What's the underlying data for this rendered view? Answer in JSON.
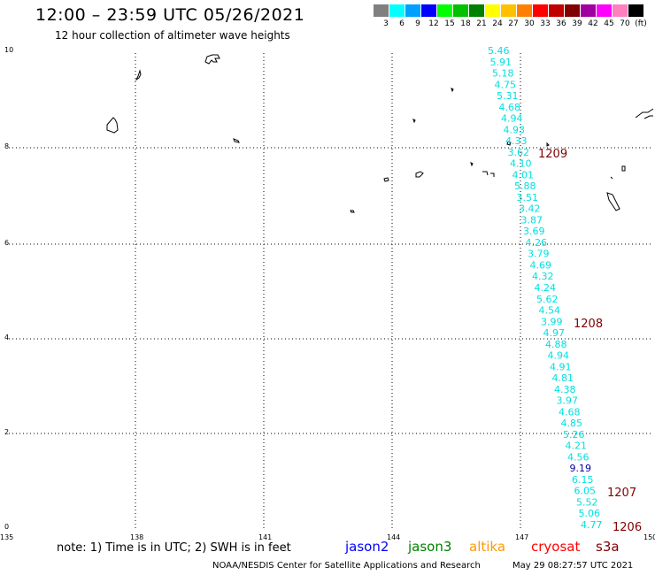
{
  "header": {
    "title": "12:00 – 23:59 UTC 05/26/2021",
    "subtitle": "12 hour collection of altimeter wave heights"
  },
  "scale": {
    "colors": [
      "#808080",
      "#00ffff",
      "#00a0ff",
      "#0000ff",
      "#00ff00",
      "#00c000",
      "#008000",
      "#ffff00",
      "#ffc000",
      "#ff8000",
      "#ff0000",
      "#c00000",
      "#800000",
      "#a000a0",
      "#ff00ff",
      "#ff80c0",
      "#000000"
    ],
    "labels": [
      "3",
      "6",
      "9",
      "12",
      "15",
      "18",
      "21",
      "24",
      "27",
      "30",
      "33",
      "36",
      "39",
      "42",
      "45",
      "70",
      "(ft)"
    ]
  },
  "axes": {
    "lon_labels": [
      "135",
      "138",
      "141",
      "144",
      "147",
      "150"
    ],
    "lat_labels": [
      "0",
      "2",
      "4",
      "6",
      "8",
      "10"
    ]
  },
  "track": {
    "color": "#00e0e0",
    "values": [
      "5.46",
      "5.91",
      "5.18",
      "4.75",
      "5.31",
      "4.68",
      "4.94",
      "4.93",
      "4.33",
      "3.62",
      "4.10",
      "4.01",
      "5.88",
      "3.51",
      "3.42",
      "3.87",
      "3.69",
      "4.26",
      "3.79",
      "4.69",
      "4.32",
      "4.24",
      "5.62",
      "4.54",
      "3.99",
      "4.97",
      "4.88",
      "4.94",
      "4.91",
      "4.81",
      "4.38",
      "3.97",
      "4.68",
      "4.85",
      "5.26",
      "4.21",
      "4.56",
      "9.19",
      "6.15",
      "6.05",
      "5.52",
      "5.06",
      "4.77"
    ],
    "highlight_index": 37,
    "highlight_color": "#0000a0"
  },
  "times": {
    "color": "#800000",
    "labels": [
      "1209",
      "1208",
      "1207",
      "1206"
    ]
  },
  "footer": {
    "note": "note: 1) Time is in UTC; 2) SWH is in feet",
    "satellites": [
      {
        "name": "jason2",
        "color": "#0000ff"
      },
      {
        "name": "jason3",
        "color": "#008000"
      },
      {
        "name": "altika",
        "color": "#ff9900"
      },
      {
        "name": "cryosat",
        "color": "#ff0000"
      },
      {
        "name": "s3a",
        "color": "#800000"
      }
    ],
    "credit": "NOAA/NESDIS Center for Satellite Applications and Research",
    "timestamp": "May 29 08:27:57 UTC 2021"
  }
}
